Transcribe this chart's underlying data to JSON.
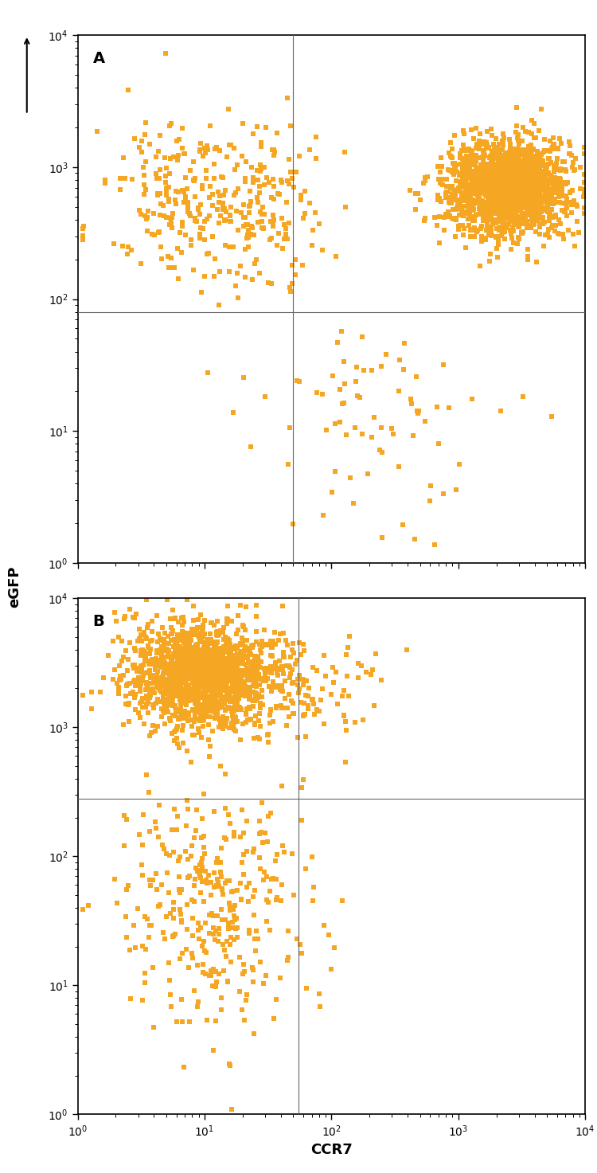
{
  "dot_color": "#F5A623",
  "background_color": "#FFFFFF",
  "xlabel": "CCR7",
  "ylabel": "eGFP",
  "panel_A_label": "A",
  "panel_B_label": "B",
  "vline_A": 50,
  "hline_A": 80,
  "vline_B": 55,
  "hline_B": 280,
  "marker_size": 18,
  "marker_style": "s",
  "linewidth_gate": 0.8,
  "gate_color": "#666666",
  "tick_label_size": 10,
  "axis_label_size": 13,
  "panel_label_size": 14
}
